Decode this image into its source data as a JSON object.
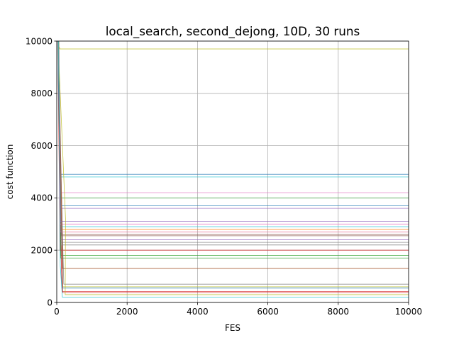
{
  "chart_data": {
    "type": "line",
    "title": "local_search, second_dejong, 10D, 30 runs",
    "xlabel": "FES",
    "ylabel": "cost function",
    "xlim": [
      0,
      10000
    ],
    "ylim": [
      0,
      10000
    ],
    "x_ticks": [
      0,
      2000,
      4000,
      6000,
      8000,
      10000
    ],
    "y_ticks": [
      0,
      2000,
      4000,
      6000,
      8000,
      10000
    ],
    "x_tick_labels": [
      "0",
      "2000",
      "4000",
      "6000",
      "8000",
      "10000"
    ],
    "y_tick_labels": [
      "0",
      "2000",
      "4000",
      "6000",
      "8000",
      "10000"
    ],
    "grid": true,
    "legend": "none",
    "series": [
      {
        "color": "#1f77b4",
        "values": [
          [
            0,
            16000
          ],
          [
            60,
            9000
          ],
          [
            110,
            3700
          ],
          [
            10000,
            3700
          ]
        ]
      },
      {
        "color": "#ff7f0e",
        "values": [
          [
            0,
            18000
          ],
          [
            50,
            9000
          ],
          [
            90,
            2700
          ],
          [
            10000,
            2700
          ]
        ]
      },
      {
        "color": "#2ca02c",
        "values": [
          [
            0,
            15000
          ],
          [
            55,
            9200
          ],
          [
            120,
            1800
          ],
          [
            10000,
            1800
          ]
        ]
      },
      {
        "color": "#d62728",
        "values": [
          [
            0,
            20000
          ],
          [
            40,
            8500
          ],
          [
            80,
            4000
          ],
          [
            150,
            420
          ],
          [
            10000,
            420
          ]
        ]
      },
      {
        "color": "#9467bd",
        "values": [
          [
            0,
            17000
          ],
          [
            60,
            9100
          ],
          [
            100,
            2400
          ],
          [
            10000,
            2400
          ]
        ]
      },
      {
        "color": "#8c564b",
        "values": [
          [
            0,
            15500
          ],
          [
            50,
            9000
          ],
          [
            120,
            2550
          ],
          [
            10000,
            2550
          ]
        ]
      },
      {
        "color": "#e377c2",
        "values": [
          [
            0,
            16500
          ],
          [
            70,
            9300
          ],
          [
            100,
            4200
          ],
          [
            10000,
            4200
          ]
        ]
      },
      {
        "color": "#7f7f7f",
        "values": [
          [
            0,
            14000
          ],
          [
            50,
            9400
          ],
          [
            100,
            2300
          ],
          [
            10000,
            2300
          ]
        ]
      },
      {
        "color": "#bcbd22",
        "values": [
          [
            0,
            12000
          ],
          [
            60,
            9800
          ],
          [
            90,
            9700
          ],
          [
            10000,
            9700
          ]
        ]
      },
      {
        "color": "#17becf",
        "values": [
          [
            0,
            16800
          ],
          [
            50,
            9000
          ],
          [
            100,
            4800
          ],
          [
            10000,
            4800
          ]
        ]
      },
      {
        "color": "#1f77b4",
        "values": [
          [
            0,
            15200
          ],
          [
            40,
            8800
          ],
          [
            90,
            4900
          ],
          [
            10000,
            4900
          ]
        ]
      },
      {
        "color": "#ff7f0e",
        "values": [
          [
            0,
            19000
          ],
          [
            60,
            9100
          ],
          [
            150,
            1300
          ],
          [
            10000,
            1300
          ]
        ]
      },
      {
        "color": "#2ca02c",
        "values": [
          [
            0,
            13000
          ],
          [
            50,
            9000
          ],
          [
            110,
            1700
          ],
          [
            10000,
            1700
          ]
        ]
      },
      {
        "color": "#d62728",
        "values": [
          [
            0,
            15800
          ],
          [
            60,
            9200
          ],
          [
            90,
            2000
          ],
          [
            10000,
            2000
          ]
        ]
      },
      {
        "color": "#9467bd",
        "values": [
          [
            0,
            16200
          ],
          [
            60,
            9000
          ],
          [
            100,
            3600
          ],
          [
            10000,
            3600
          ]
        ]
      },
      {
        "color": "#8c564b",
        "values": [
          [
            0,
            14800
          ],
          [
            50,
            9100
          ],
          [
            130,
            2600
          ],
          [
            10000,
            2600
          ]
        ]
      },
      {
        "color": "#e377c2",
        "values": [
          [
            0,
            16100
          ],
          [
            60,
            9300
          ],
          [
            90,
            3000
          ],
          [
            10000,
            3000
          ]
        ]
      },
      {
        "color": "#7f7f7f",
        "values": [
          [
            0,
            15400
          ],
          [
            40,
            9200
          ],
          [
            200,
            700
          ],
          [
            10000,
            700
          ]
        ]
      },
      {
        "color": "#bcbd22",
        "values": [
          [
            0,
            17400
          ],
          [
            60,
            9000
          ],
          [
            170,
            600
          ],
          [
            10000,
            600
          ]
        ]
      },
      {
        "color": "#17becf",
        "values": [
          [
            0,
            16600
          ],
          [
            60,
            8700
          ],
          [
            130,
            2900
          ],
          [
            10000,
            2900
          ]
        ]
      },
      {
        "color": "#1f77b4",
        "values": [
          [
            0,
            18400
          ],
          [
            60,
            9100
          ],
          [
            160,
            550
          ],
          [
            10000,
            550
          ]
        ]
      },
      {
        "color": "#ff7f0e",
        "values": [
          [
            0,
            17600
          ],
          [
            60,
            9000
          ],
          [
            140,
            2800
          ],
          [
            10000,
            2800
          ]
        ]
      },
      {
        "color": "#2ca02c",
        "values": [
          [
            0,
            15600
          ],
          [
            50,
            9100
          ],
          [
            110,
            4000
          ],
          [
            10000,
            4000
          ]
        ]
      },
      {
        "color": "#d62728",
        "values": [
          [
            0,
            16400
          ],
          [
            60,
            9000
          ],
          [
            110,
            4500
          ],
          [
            170,
            380
          ],
          [
            10000,
            380
          ]
        ]
      },
      {
        "color": "#9467bd",
        "values": [
          [
            0,
            14400
          ],
          [
            50,
            9300
          ],
          [
            100,
            3100
          ],
          [
            10000,
            3100
          ]
        ]
      },
      {
        "color": "#8c564b",
        "values": [
          [
            0,
            17200
          ],
          [
            60,
            9000
          ],
          [
            180,
            1300
          ],
          [
            10000,
            1300
          ]
        ]
      },
      {
        "color": "#e377c2",
        "values": [
          [
            0,
            15900
          ],
          [
            60,
            9100
          ],
          [
            100,
            2700
          ],
          [
            10000,
            2700
          ]
        ]
      },
      {
        "color": "#7f7f7f",
        "values": [
          [
            0,
            16700
          ],
          [
            50,
            9000
          ],
          [
            140,
            2200
          ],
          [
            10000,
            2200
          ]
        ]
      },
      {
        "color": "#bcbd22",
        "values": [
          [
            0,
            17900
          ],
          [
            60,
            9200
          ],
          [
            250,
            3200
          ],
          [
            240,
            300
          ],
          [
            10000,
            300
          ]
        ]
      },
      {
        "color": "#17becf",
        "values": [
          [
            0,
            18700
          ],
          [
            60,
            9100
          ],
          [
            100,
            1400
          ],
          [
            160,
            200
          ],
          [
            10000,
            200
          ]
        ]
      }
    ]
  }
}
